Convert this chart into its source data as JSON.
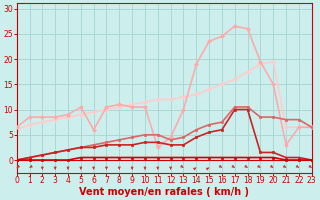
{
  "xlabel": "Vent moyen/en rafales ( km/h )",
  "background_color": "#cceeed",
  "grid_color": "#aad8d5",
  "x_ticks": [
    0,
    1,
    2,
    3,
    4,
    5,
    6,
    7,
    8,
    9,
    10,
    11,
    12,
    13,
    14,
    15,
    16,
    17,
    18,
    19,
    20,
    21,
    22,
    23
  ],
  "y_ticks": [
    0,
    5,
    10,
    15,
    20,
    25,
    30
  ],
  "xlim": [
    0,
    23
  ],
  "ylim": [
    0,
    31
  ],
  "series": [
    {
      "x": [
        0,
        1,
        2,
        3,
        4,
        5,
        6,
        7,
        8,
        9,
        10,
        11,
        12,
        13,
        14,
        15,
        16,
        17,
        18,
        19,
        20,
        21,
        22,
        23
      ],
      "y": [
        6,
        7,
        7.5,
        8,
        8.5,
        9,
        9.5,
        10,
        10.5,
        11,
        11.5,
        12,
        12,
        12.5,
        13,
        14,
        15,
        16,
        17.5,
        19,
        19.5,
        6.5,
        6.5,
        6.5
      ],
      "color": "#ffcccc",
      "lw": 1.2,
      "marker": "D",
      "ms": 2,
      "zorder": 2
    },
    {
      "x": [
        0,
        1,
        2,
        3,
        4,
        5,
        6,
        7,
        8,
        9,
        10,
        11,
        12,
        13,
        14,
        15,
        16,
        17,
        18,
        19,
        20,
        21,
        22,
        23
      ],
      "y": [
        6.5,
        8.5,
        8.5,
        8.5,
        9,
        10.5,
        6,
        10.5,
        11,
        10.5,
        10.5,
        2.5,
        4.5,
        10,
        19,
        23.5,
        24.5,
        26.5,
        26,
        19.5,
        15,
        3,
        6.5,
        6.5
      ],
      "color": "#ffaaaa",
      "lw": 1.2,
      "marker": "D",
      "ms": 2,
      "zorder": 3
    },
    {
      "x": [
        0,
        1,
        2,
        3,
        4,
        5,
        6,
        7,
        8,
        9,
        10,
        11,
        12,
        13,
        14,
        15,
        16,
        17,
        18,
        19,
        20,
        21,
        22,
        23
      ],
      "y": [
        0,
        0.5,
        1,
        1.5,
        2,
        2.5,
        3,
        3.5,
        4,
        4.5,
        5,
        5,
        4,
        4.5,
        6,
        7,
        7.5,
        10.5,
        10.5,
        8.5,
        8.5,
        8,
        8,
        6.5
      ],
      "color": "#dd6666",
      "lw": 1.2,
      "marker": "s",
      "ms": 2,
      "zorder": 4
    },
    {
      "x": [
        0,
        1,
        2,
        3,
        4,
        5,
        6,
        7,
        8,
        9,
        10,
        11,
        12,
        13,
        14,
        15,
        16,
        17,
        18,
        19,
        20,
        21,
        22,
        23
      ],
      "y": [
        0,
        0.5,
        1,
        1.5,
        2,
        2.5,
        2.5,
        3,
        3,
        3,
        3.5,
        3.5,
        3,
        3,
        4.5,
        5.5,
        6,
        10,
        10,
        1.5,
        1.5,
        0.5,
        0.5,
        0
      ],
      "color": "#cc2222",
      "lw": 1.2,
      "marker": "s",
      "ms": 2,
      "zorder": 5
    },
    {
      "x": [
        0,
        1,
        2,
        3,
        4,
        5,
        6,
        7,
        8,
        9,
        10,
        11,
        12,
        13,
        14,
        15,
        16,
        17,
        18,
        19,
        20,
        21,
        22,
        23
      ],
      "y": [
        0,
        0,
        0,
        0,
        0,
        0.5,
        0.5,
        0.5,
        0.5,
        0.5,
        0.5,
        0.5,
        0.5,
        0.5,
        0.5,
        0.5,
        0.5,
        0.5,
        0.5,
        0.5,
        0.5,
        0,
        0,
        0
      ],
      "color": "#cc0000",
      "lw": 1.2,
      "marker": "s",
      "ms": 2,
      "zorder": 6
    }
  ],
  "arrow_angles": [
    225,
    225,
    270,
    270,
    270,
    270,
    270,
    270,
    270,
    270,
    270,
    270,
    270,
    315,
    45,
    45,
    315,
    315,
    315,
    315,
    315,
    315,
    315,
    315
  ],
  "arrow_color": "#cc3333",
  "tick_color": "#cc0000",
  "tick_fontsize": 5.5,
  "xlabel_fontsize": 7,
  "xlabel_color": "#cc0000"
}
